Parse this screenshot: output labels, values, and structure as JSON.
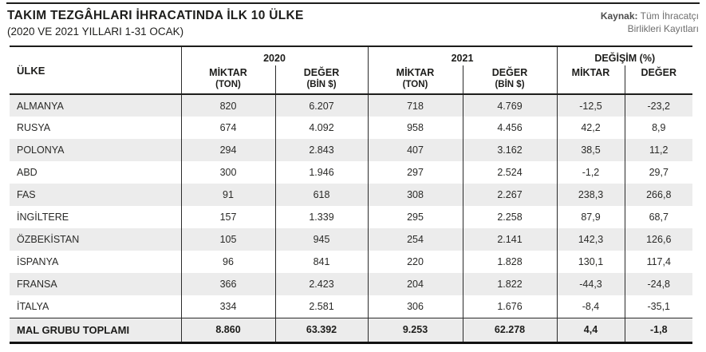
{
  "header": {
    "title": "TAKIM TEZGÂHLARI İHRACATINDA İLK 10 ÜLKE",
    "subtitle": "(2020 VE 2021 YILLARI 1-31 OCAK)",
    "source_label": "Kaynak:",
    "source_line1": "Tüm İhracatçı",
    "source_line2": "Birlikleri Kayıtları"
  },
  "chart_data": {
    "type": "table",
    "title": "TAKIM TEZGÂHLARI İHRACATINDA İLK 10 ÜLKE",
    "subtitle": "(2020 VE 2021 YILLARI 1-31 OCAK)",
    "source": "Kaynak: Tüm İhracatçı Birlikleri Kayıtları",
    "country_header": "ÜLKE",
    "groups": [
      {
        "label": "2020",
        "sub1_l1": "MİKTAR",
        "sub1_l2": "(TON)",
        "sub2_l1": "DEĞER",
        "sub2_l2": "(BİN $)"
      },
      {
        "label": "2021",
        "sub1_l1": "MİKTAR",
        "sub1_l2": "(TON)",
        "sub2_l1": "DEĞER",
        "sub2_l2": "(BİN $)"
      },
      {
        "label": "DEĞİŞİM (%)",
        "sub1_l1": "MİKTAR",
        "sub1_l2": "",
        "sub2_l1": "DEĞER",
        "sub2_l2": ""
      }
    ],
    "columns": [
      "ÜLKE",
      "2020 MİKTAR (TON)",
      "2020 DEĞER (BİN $)",
      "2021 MİKTAR (TON)",
      "2021 DEĞER (BİN $)",
      "DEĞİŞİM (%) MİKTAR",
      "DEĞİŞİM (%) DEĞER"
    ],
    "rows": [
      {
        "country": "ALMANYA",
        "values": [
          "820",
          "6.207",
          "718",
          "4.769",
          "-12,5",
          "-23,2"
        ]
      },
      {
        "country": "RUSYA",
        "values": [
          "674",
          "4.092",
          "958",
          "4.456",
          "42,2",
          "8,9"
        ]
      },
      {
        "country": "POLONYA",
        "values": [
          "294",
          "2.843",
          "407",
          "3.162",
          "38,5",
          "11,2"
        ]
      },
      {
        "country": "ABD",
        "values": [
          "300",
          "1.946",
          "297",
          "2.524",
          "-1,2",
          "29,7"
        ]
      },
      {
        "country": "FAS",
        "values": [
          "91",
          "618",
          "308",
          "2.267",
          "238,3",
          "266,8"
        ]
      },
      {
        "country": "İNGİLTERE",
        "values": [
          "157",
          "1.339",
          "295",
          "2.258",
          "87,9",
          "68,7"
        ]
      },
      {
        "country": "ÖZBEKİSTAN",
        "values": [
          "105",
          "945",
          "254",
          "2.141",
          "142,3",
          "126,6"
        ]
      },
      {
        "country": "İSPANYA",
        "values": [
          "96",
          "841",
          "220",
          "1.828",
          "130,1",
          "117,4"
        ]
      },
      {
        "country": "FRANSA",
        "values": [
          "366",
          "2.423",
          "204",
          "1.822",
          "-44,3",
          "-24,8"
        ]
      },
      {
        "country": "İTALYA",
        "values": [
          "334",
          "2.581",
          "306",
          "1.676",
          "-8,4",
          "-35,1"
        ]
      }
    ],
    "total": {
      "country": "MAL GRUBU TOPLAMI",
      "values": [
        "8.860",
        "63.392",
        "9.253",
        "62.278",
        "4,4",
        "-1,8"
      ]
    }
  },
  "colors": {
    "stripe": "#ececec",
    "rule": "#1d1d1b",
    "text": "#1d1d1b",
    "source_text": "#6e6e6e"
  }
}
